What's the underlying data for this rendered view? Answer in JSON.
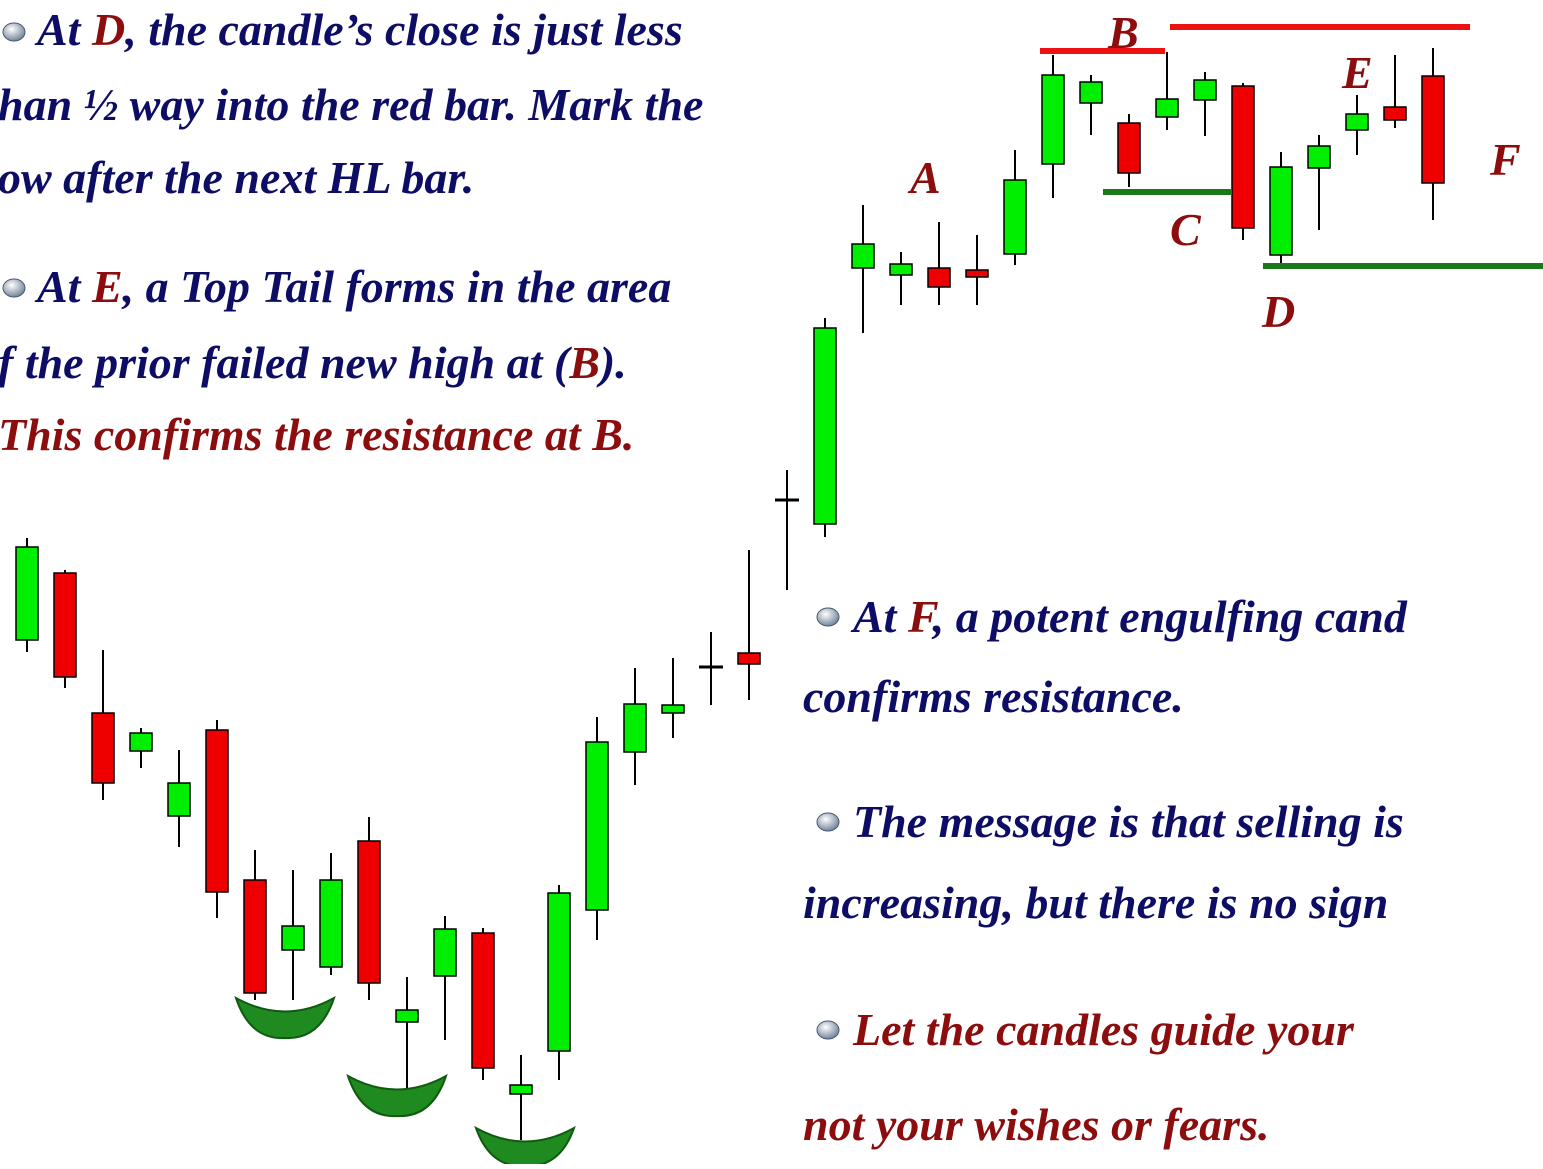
{
  "paragraphs": [
    {
      "lines": [
        [
          "At ",
          "D",
          ", the candle’s close is just less"
        ],
        [
          "han ½ way into the red bar. Mark the"
        ],
        [
          "ow after the next HL bar."
        ]
      ]
    },
    {
      "lines": [
        [
          "At ",
          "E",
          ", a Top Tail forms in the area"
        ],
        [
          "f the prior failed new high at (",
          "B",
          ")."
        ],
        [
          "This confirms the resistance at B."
        ]
      ]
    },
    {
      "lines": [
        [
          "At ",
          "F",
          ", a potent engulfing cand"
        ],
        [
          "confirms resistance."
        ]
      ]
    },
    {
      "lines": [
        [
          "The message is that selling is"
        ],
        [
          "increasing, but there is no sign"
        ]
      ]
    },
    {
      "lines": [
        [
          "Let the candles guide your"
        ],
        [
          "not your wishes or fears."
        ]
      ]
    }
  ],
  "labels": [
    "A",
    "B",
    "C",
    "D",
    "E",
    "F"
  ]
}
